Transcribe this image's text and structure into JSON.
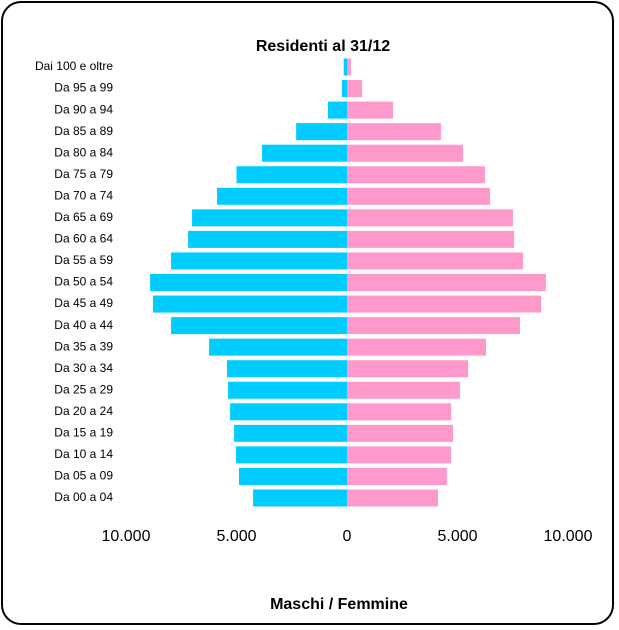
{
  "chart_data": {
    "type": "pyramid",
    "title": "Residenti al 31/12",
    "xlabel": "Maschi / Femmine",
    "categories": [
      "Dai 100 e oltre",
      "Da 95 a 99",
      "Da 90 a 94",
      "Da 85 a 89",
      "Da 80 a 84",
      "Da 75 a 79",
      "Da 70 a 74",
      "Da 65 a 69",
      "Da 60 a 64",
      "Da 55 a 59",
      "Da 50 a 54",
      "Da 45 a 49",
      "Da 40 a 44",
      "Da 35 a 39",
      "Da 30 a 34",
      "Da 25 a 29",
      "Da 20 a 24",
      "Da 15 a 19",
      "Da 10 a 14",
      "Da 05 a 09",
      "Da 00 a 04"
    ],
    "series": [
      {
        "color": "#00ccff",
        "side": "left",
        "values": [
          150,
          230,
          860,
          2300,
          3850,
          5000,
          5880,
          7010,
          7190,
          7960,
          8910,
          8780,
          7960,
          6240,
          5430,
          5380,
          5290,
          5110,
          5020,
          4890,
          4250
        ]
      },
      {
        "color": "#ff99cc",
        "side": "right",
        "values": [
          180,
          680,
          2080,
          4250,
          5250,
          6240,
          6470,
          7510,
          7560,
          7960,
          9000,
          8780,
          7830,
          6290,
          5480,
          5110,
          4710,
          4800,
          4710,
          4520,
          4120
        ]
      }
    ],
    "xlim": [
      -10000,
      10000
    ],
    "xticks": [
      {
        "value": -10000,
        "label": "10.000"
      },
      {
        "value": -5000,
        "label": "5.000"
      },
      0,
      {
        "value": 5000,
        "label": "5.000"
      },
      {
        "value": 10000,
        "label": "10.000"
      }
    ]
  }
}
